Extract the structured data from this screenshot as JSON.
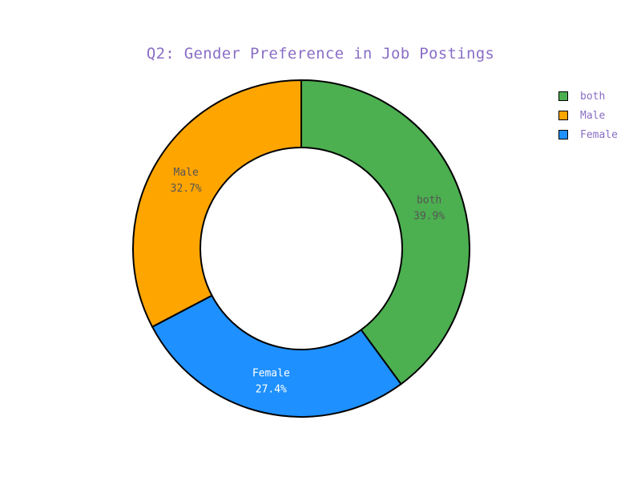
{
  "chart_data": {
    "type": "pie",
    "hole": true,
    "title": "Q2: Gender Preference in Job Postings",
    "slices": [
      {
        "label": "both",
        "value": 39.9,
        "percent_text": "39.9%",
        "color": "#4caf50",
        "text_color": "#555555"
      },
      {
        "label": "Female",
        "value": 27.4,
        "percent_text": "27.4%",
        "color": "#1e90ff",
        "text_color": "#ffffff"
      },
      {
        "label": "Male",
        "value": 32.7,
        "percent_text": "32.7%",
        "color": "#ffa500",
        "text_color": "#555555"
      }
    ],
    "legend": {
      "position": "top-right",
      "items": [
        {
          "label": "both",
          "color": "#4caf50"
        },
        {
          "label": "Male",
          "color": "#ffa500"
        },
        {
          "label": "Female",
          "color": "#1e90ff"
        }
      ]
    }
  }
}
